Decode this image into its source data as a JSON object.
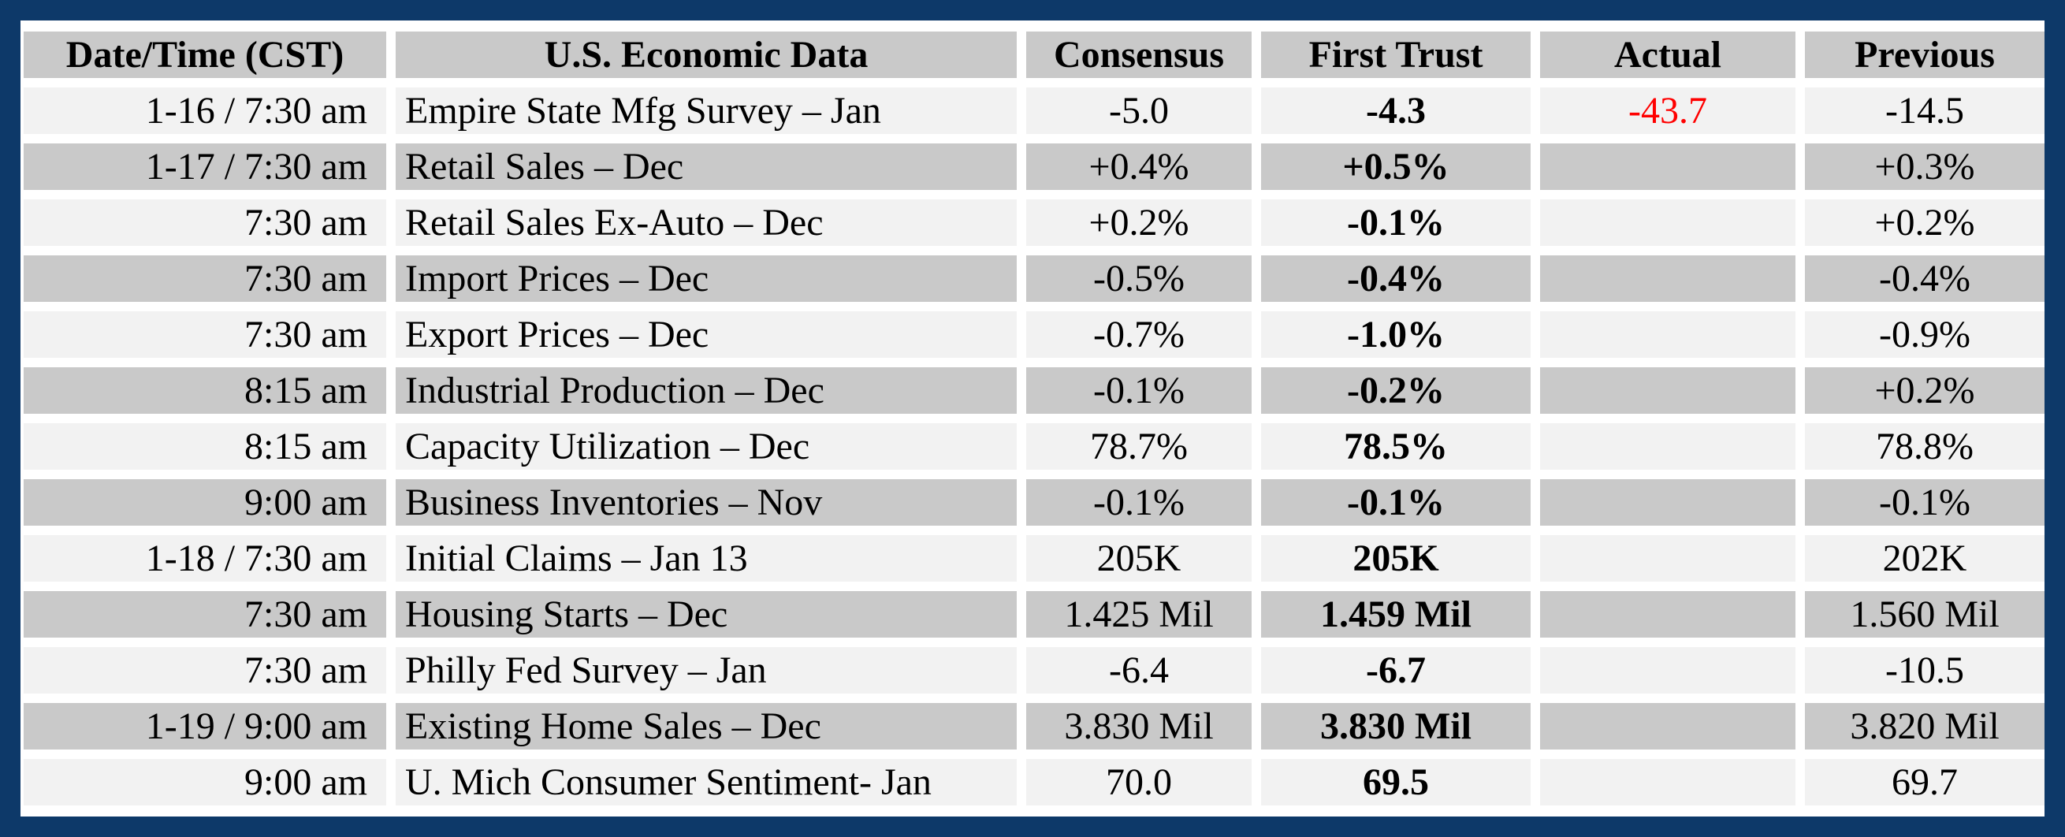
{
  "colors": {
    "frame_navy": "#0d3969",
    "header_gray": "#c9c9c9",
    "row_light": "#f2f2f2",
    "row_dark": "#c9c9c9",
    "text_black": "#000000",
    "actual_negative_red": "#ff0000",
    "gutter_white": "#ffffff"
  },
  "table": {
    "columns": [
      {
        "key": "datetime",
        "label": "Date/Time (CST)"
      },
      {
        "key": "event",
        "label": "U.S. Economic Data"
      },
      {
        "key": "consensus",
        "label": "Consensus"
      },
      {
        "key": "first_trust",
        "label": "First Trust"
      },
      {
        "key": "actual",
        "label": "Actual"
      },
      {
        "key": "previous",
        "label": "Previous"
      }
    ],
    "rows": [
      {
        "datetime": "1-16 / 7:30 am",
        "event": "Empire State Mfg Survey – Jan",
        "consensus": "-5.0",
        "first_trust": "-4.3",
        "actual": "-43.7",
        "actual_color": "actual_negative_red",
        "previous": "-14.5"
      },
      {
        "datetime": "1-17 / 7:30 am",
        "event": "Retail Sales – Dec",
        "consensus": "+0.4%",
        "first_trust": "+0.5%",
        "actual": "",
        "previous": "+0.3%"
      },
      {
        "datetime": "7:30 am",
        "event": "Retail Sales Ex-Auto – Dec",
        "consensus": "+0.2%",
        "first_trust": "-0.1%",
        "actual": "",
        "previous": "+0.2%"
      },
      {
        "datetime": "7:30 am",
        "event": "Import Prices – Dec",
        "consensus": "-0.5%",
        "first_trust": "-0.4%",
        "actual": "",
        "previous": "-0.4%"
      },
      {
        "datetime": "7:30 am",
        "event": "Export Prices – Dec",
        "consensus": "-0.7%",
        "first_trust": "-1.0%",
        "actual": "",
        "previous": "-0.9%"
      },
      {
        "datetime": "8:15 am",
        "event": "Industrial Production – Dec",
        "consensus": "-0.1%",
        "first_trust": "-0.2%",
        "actual": "",
        "previous": "+0.2%"
      },
      {
        "datetime": "8:15 am",
        "event": "Capacity Utilization – Dec",
        "consensus": "78.7%",
        "first_trust": "78.5%",
        "actual": "",
        "previous": "78.8%"
      },
      {
        "datetime": "9:00 am",
        "event": "Business Inventories – Nov",
        "consensus": "-0.1%",
        "first_trust": "-0.1%",
        "actual": "",
        "previous": "-0.1%"
      },
      {
        "datetime": "1-18 / 7:30 am",
        "event": "Initial Claims – Jan 13",
        "consensus": "205K",
        "first_trust": "205K",
        "actual": "",
        "previous": "202K"
      },
      {
        "datetime": "7:30 am",
        "event": "Housing Starts – Dec",
        "consensus": "1.425 Mil",
        "first_trust": "1.459 Mil",
        "actual": "",
        "previous": "1.560 Mil"
      },
      {
        "datetime": "7:30 am",
        "event": "Philly Fed Survey – Jan",
        "consensus": "-6.4",
        "first_trust": "-6.7",
        "actual": "",
        "previous": "-10.5"
      },
      {
        "datetime": "1-19 / 9:00 am",
        "event": "Existing Home Sales – Dec",
        "consensus": "3.830 Mil",
        "first_trust": "3.830 Mil",
        "actual": "",
        "previous": "3.820 Mil"
      },
      {
        "datetime": "9:00 am",
        "event": "U. Mich Consumer Sentiment- Jan",
        "consensus": "70.0",
        "first_trust": "69.5",
        "actual": "",
        "previous": "69.7"
      }
    ]
  },
  "chart_data": {
    "type": "table",
    "title": "U.S. Economic Data calendar with Consensus, First Trust, Actual and Previous values",
    "columns": [
      "Date/Time (CST)",
      "U.S. Economic Data",
      "Consensus",
      "First Trust",
      "Actual",
      "Previous"
    ],
    "rows": [
      [
        "1-16 / 7:30 am",
        "Empire State Mfg Survey – Jan",
        "-5.0",
        "-4.3",
        "-43.7",
        "-14.5"
      ],
      [
        "1-17 / 7:30 am",
        "Retail Sales – Dec",
        "+0.4%",
        "+0.5%",
        "",
        "+0.3%"
      ],
      [
        "7:30 am",
        "Retail Sales Ex-Auto – Dec",
        "+0.2%",
        "-0.1%",
        "",
        "+0.2%"
      ],
      [
        "7:30 am",
        "Import Prices – Dec",
        "-0.5%",
        "-0.4%",
        "",
        "-0.4%"
      ],
      [
        "7:30 am",
        "Export Prices – Dec",
        "-0.7%",
        "-1.0%",
        "",
        "-0.9%"
      ],
      [
        "8:15 am",
        "Industrial Production – Dec",
        "-0.1%",
        "-0.2%",
        "",
        "+0.2%"
      ],
      [
        "8:15 am",
        "Capacity Utilization – Dec",
        "78.7%",
        "78.5%",
        "",
        "78.8%"
      ],
      [
        "9:00 am",
        "Business Inventories – Nov",
        "-0.1%",
        "-0.1%",
        "",
        "-0.1%"
      ],
      [
        "1-18 / 7:30 am",
        "Initial Claims – Jan 13",
        "205K",
        "205K",
        "",
        "202K"
      ],
      [
        "7:30 am",
        "Housing Starts – Dec",
        "1.425 Mil",
        "1.459 Mil",
        "",
        "1.560 Mil"
      ],
      [
        "7:30 am",
        "Philly Fed Survey – Jan",
        "-6.4",
        "-6.7",
        "",
        "-10.5"
      ],
      [
        "1-19 / 9:00 am",
        "Existing Home Sales – Dec",
        "3.830 Mil",
        "3.830 Mil",
        "",
        "3.820 Mil"
      ],
      [
        "9:00 am",
        "U. Mich Consumer Sentiment- Jan",
        "70.0",
        "69.5",
        "",
        "69.7"
      ]
    ],
    "style_notes": {
      "first_trust_column_bold": true,
      "actual_negative_in_red": [
        "-43.7"
      ],
      "striping": "rows alternate light gray (#f2f2f2) and gray (#c9c9c9), header gray (#c9c9c9)",
      "frame": "thick navy border (#0d3969) around table, white gutters between cells"
    }
  }
}
